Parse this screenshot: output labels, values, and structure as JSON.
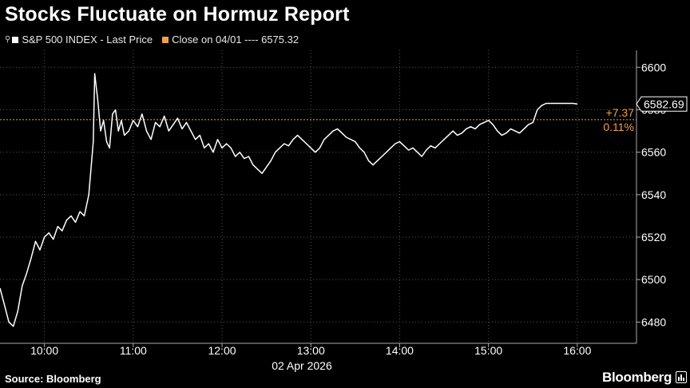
{
  "title": "Stocks Fluctuate on Hormuz Report",
  "legend": {
    "series_label": "S&P 500 INDEX - Last Price",
    "close_label": "Close on 04/01 ---- 6575.32"
  },
  "source": "Source: Bloomberg",
  "brand": "Bloomberg",
  "colors": {
    "series": "#ffffff",
    "close": "#f0a04b",
    "grid": "#555555",
    "background": "#000000"
  },
  "chart_data": {
    "type": "line",
    "title": "Stocks Fluctuate on Hormuz Report",
    "x_label": "02 Apr 2026",
    "x_ticks": [
      "10:00",
      "11:00",
      "12:00",
      "13:00",
      "14:00",
      "15:00",
      "16:00"
    ],
    "y_ticks": [
      6480,
      6500,
      6520,
      6540,
      6560,
      6580,
      6600
    ],
    "ylim": [
      6470,
      6608
    ],
    "xlim": [
      "09:30",
      "16:40"
    ],
    "grid": true,
    "y_axis_side": "right",
    "series": [
      {
        "name": "S&P 500 INDEX - Last Price",
        "x": [
          "09:30",
          "09:33",
          "09:36",
          "09:39",
          "09:42",
          "09:45",
          "09:48",
          "09:51",
          "09:54",
          "09:57",
          "10:00",
          "10:03",
          "10:06",
          "10:09",
          "10:12",
          "10:15",
          "10:18",
          "10:21",
          "10:24",
          "10:27",
          "10:30",
          "10:33",
          "10:34",
          "10:36",
          "10:38",
          "10:40",
          "10:42",
          "10:44",
          "10:46",
          "10:48",
          "10:50",
          "10:52",
          "10:54",
          "10:57",
          "11:00",
          "11:03",
          "11:06",
          "11:09",
          "11:12",
          "11:15",
          "11:18",
          "11:21",
          "11:24",
          "11:27",
          "11:30",
          "11:33",
          "11:36",
          "11:39",
          "11:42",
          "11:45",
          "11:48",
          "11:51",
          "11:54",
          "11:57",
          "12:00",
          "12:03",
          "12:06",
          "12:09",
          "12:12",
          "12:15",
          "12:18",
          "12:21",
          "12:24",
          "12:27",
          "12:30",
          "12:33",
          "12:36",
          "12:39",
          "12:42",
          "12:45",
          "12:48",
          "12:51",
          "12:54",
          "12:57",
          "13:00",
          "13:03",
          "13:06",
          "13:09",
          "13:12",
          "13:15",
          "13:18",
          "13:21",
          "13:24",
          "13:27",
          "13:30",
          "13:33",
          "13:36",
          "13:39",
          "13:42",
          "13:45",
          "13:48",
          "13:51",
          "13:54",
          "13:57",
          "14:00",
          "14:03",
          "14:06",
          "14:09",
          "14:12",
          "14:15",
          "14:18",
          "14:21",
          "14:24",
          "14:27",
          "14:30",
          "14:33",
          "14:36",
          "14:39",
          "14:42",
          "14:45",
          "14:48",
          "14:51",
          "14:54",
          "14:57",
          "15:00",
          "15:03",
          "15:06",
          "15:09",
          "15:12",
          "15:15",
          "15:18",
          "15:21",
          "15:24",
          "15:27",
          "15:30",
          "15:33",
          "15:36",
          "15:39",
          "15:42",
          "15:45",
          "15:48",
          "15:51",
          "15:54",
          "15:57",
          "16:00"
        ],
        "y": [
          6496,
          6488,
          6480,
          6478,
          6485,
          6497,
          6503,
          6510,
          6518,
          6514,
          6520,
          6522,
          6519,
          6525,
          6523,
          6528,
          6530,
          6527,
          6532,
          6530,
          6540,
          6565,
          6597,
          6585,
          6570,
          6575,
          6565,
          6562,
          6578,
          6580,
          6570,
          6575,
          6568,
          6570,
          6575,
          6572,
          6578,
          6570,
          6566,
          6574,
          6572,
          6577,
          6570,
          6573,
          6576,
          6571,
          6574,
          6570,
          6566,
          6568,
          6562,
          6564,
          6560,
          6566,
          6562,
          6564,
          6562,
          6558,
          6560,
          6557,
          6558,
          6554,
          6552,
          6550,
          6553,
          6556,
          6560,
          6562,
          6564,
          6563,
          6566,
          6568,
          6566,
          6564,
          6562,
          6560,
          6562,
          6566,
          6568,
          6570,
          6571,
          6569,
          6567,
          6566,
          6565,
          6562,
          6560,
          6556,
          6554,
          6556,
          6558,
          6560,
          6562,
          6564,
          6565,
          6563,
          6561,
          6562,
          6560,
          6558,
          6561,
          6563,
          6562,
          6564,
          6566,
          6568,
          6570,
          6568,
          6569,
          6571,
          6572,
          6571,
          6573,
          6574,
          6575,
          6573,
          6570,
          6568,
          6569,
          6571,
          6570,
          6569,
          6571,
          6573,
          6574,
          6580,
          6582,
          6583,
          6583,
          6583,
          6583,
          6583,
          6583,
          6583,
          6582.69
        ]
      }
    ],
    "reference_line": {
      "label": "Close on 04/01",
      "value": 6575.32
    },
    "annotations": {
      "last_value": "6582.69",
      "change_abs": "+7.37",
      "change_pct": "0.11%"
    }
  }
}
